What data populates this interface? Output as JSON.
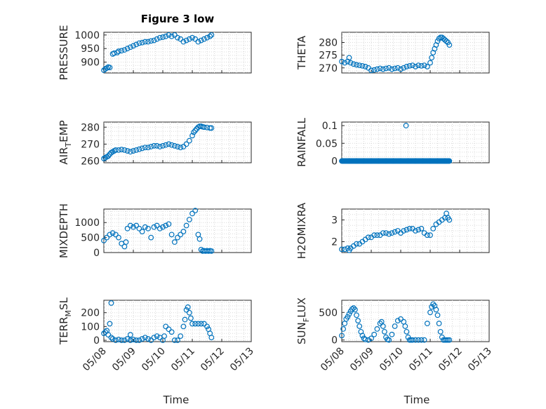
{
  "chart_data": [
    {
      "type": "scatter",
      "title": "Figure 3 low",
      "ylabel": {
        "main": "PRESSURE",
        "sub": "",
        "tail": ""
      },
      "ylim": [
        860,
        1010
      ],
      "yticks": [
        900,
        950,
        1000
      ],
      "xlim": [
        "05/08",
        "05/13"
      ],
      "xticks": [
        "05/08",
        "05/09",
        "05/10",
        "05/11",
        "05/12",
        "05/13"
      ],
      "grid": true,
      "series": [
        {
          "x": [
            0,
            0.05,
            0.1,
            0.15,
            0.2,
            0.3,
            0.35,
            0.45,
            0.5,
            0.6,
            0.7,
            0.8,
            0.9,
            1.0,
            1.1,
            1.2,
            1.3,
            1.4,
            1.5,
            1.6,
            1.7,
            1.8,
            1.9,
            2.0,
            2.1,
            2.2,
            2.3,
            2.4,
            2.5,
            2.6,
            2.7,
            2.8,
            2.9,
            3.0,
            3.1,
            3.2,
            3.3,
            3.4,
            3.5,
            3.6,
            3.65
          ],
          "y": [
            870,
            875,
            878,
            882,
            880,
            930,
            933,
            935,
            940,
            942,
            945,
            950,
            955,
            960,
            965,
            970,
            972,
            975,
            975,
            978,
            980,
            985,
            990,
            992,
            995,
            1000,
            995,
            1000,
            990,
            985,
            975,
            980,
            985,
            990,
            985,
            975,
            980,
            985,
            990,
            995,
            1000
          ]
        }
      ]
    },
    {
      "type": "scatter",
      "title": "",
      "ylabel": {
        "main": "THETA",
        "sub": "",
        "tail": ""
      },
      "ylim": [
        268,
        284
      ],
      "yticks": [
        270,
        275,
        280
      ],
      "xlim": [
        "05/08",
        "05/13"
      ],
      "xticks": [
        "05/08",
        "05/09",
        "05/10",
        "05/11",
        "05/12",
        "05/13"
      ],
      "grid": true,
      "series": [
        {
          "x": [
            0,
            0.1,
            0.2,
            0.25,
            0.3,
            0.4,
            0.5,
            0.6,
            0.7,
            0.8,
            0.9,
            1.0,
            1.1,
            1.2,
            1.3,
            1.4,
            1.5,
            1.6,
            1.7,
            1.8,
            1.9,
            2.0,
            2.1,
            2.2,
            2.3,
            2.4,
            2.5,
            2.6,
            2.7,
            2.8,
            2.9,
            3.0,
            3.05,
            3.1,
            3.15,
            3.2,
            3.25,
            3.3,
            3.35,
            3.4,
            3.45,
            3.5,
            3.55,
            3.6,
            3.65
          ],
          "y": [
            272.5,
            272,
            272.5,
            274,
            272,
            271.5,
            271.2,
            271,
            270.8,
            270.5,
            270,
            269,
            269.2,
            269.5,
            269.8,
            269.5,
            269.8,
            270,
            269.5,
            269.8,
            270,
            269.5,
            270,
            270.5,
            270.8,
            271,
            270.5,
            271,
            270.8,
            271,
            270.5,
            272,
            274,
            276,
            277.5,
            279,
            280.5,
            281.5,
            282,
            282,
            281.5,
            281,
            280.5,
            280,
            279
          ]
        }
      ]
    },
    {
      "type": "scatter",
      "title": "",
      "ylabel": {
        "main": "AIR",
        "sub": "T",
        "tail": "EMP"
      },
      "ylim": [
        259,
        283
      ],
      "yticks": [
        260,
        270,
        280
      ],
      "xlim": [
        "05/08",
        "05/13"
      ],
      "xticks": [
        "05/08",
        "05/09",
        "05/10",
        "05/11",
        "05/12",
        "05/13"
      ],
      "grid": true,
      "series": [
        {
          "x": [
            0,
            0.05,
            0.1,
            0.15,
            0.2,
            0.25,
            0.3,
            0.35,
            0.4,
            0.5,
            0.6,
            0.7,
            0.8,
            0.9,
            1.0,
            1.1,
            1.2,
            1.3,
            1.4,
            1.5,
            1.6,
            1.7,
            1.8,
            1.9,
            2.0,
            2.1,
            2.2,
            2.3,
            2.4,
            2.5,
            2.6,
            2.7,
            2.8,
            2.9,
            3.0,
            3.05,
            3.1,
            3.15,
            3.2,
            3.25,
            3.3,
            3.35,
            3.4,
            3.5,
            3.6,
            3.65
          ],
          "y": [
            261.5,
            262,
            262.5,
            263,
            264,
            265,
            265.5,
            266,
            266.5,
            266.5,
            266.8,
            266.5,
            266,
            265.5,
            266,
            266.5,
            267,
            267.5,
            268,
            268,
            268.5,
            269,
            269,
            268.5,
            269,
            269.5,
            270,
            269.5,
            269,
            268.5,
            268,
            268.5,
            270,
            272,
            275,
            277,
            278,
            279,
            280,
            280.5,
            280.5,
            280.2,
            280,
            279.8,
            279.5,
            279.5
          ]
        }
      ]
    },
    {
      "type": "scatter",
      "title": "",
      "ylabel": {
        "main": "RAINFALL",
        "sub": "",
        "tail": ""
      },
      "ylim": [
        -0.005,
        0.11
      ],
      "yticks": [
        0,
        0.05,
        0.1
      ],
      "ytick_labels": [
        "0",
        "0.05",
        "0.1"
      ],
      "xlim": [
        "05/08",
        "05/13"
      ],
      "xticks": [
        "05/08",
        "05/09",
        "05/10",
        "05/11",
        "05/12",
        "05/13"
      ],
      "grid": true,
      "series": [
        {
          "x": [
            0,
            0.25,
            0.5,
            0.75,
            1.0,
            1.25,
            1.5,
            1.75,
            2.0,
            2.25,
            2.5,
            2.75,
            3.0,
            3.25,
            3.5,
            3.65,
            2.18
          ],
          "y": [
            0,
            0,
            0,
            0,
            0,
            0,
            0,
            0,
            0,
            0,
            0,
            0,
            0,
            0,
            0,
            0,
            0.1
          ]
        }
      ]
    },
    {
      "type": "scatter",
      "title": "",
      "ylabel": {
        "main": "MIXDEPTH",
        "sub": "",
        "tail": ""
      },
      "ylim": [
        0,
        1450
      ],
      "yticks": [
        0,
        500,
        1000
      ],
      "xlim": [
        "05/08",
        "05/13"
      ],
      "xticks": [
        "05/08",
        "05/09",
        "05/10",
        "05/11",
        "05/12",
        "05/13"
      ],
      "grid": true,
      "series": [
        {
          "x": [
            0,
            0.1,
            0.2,
            0.3,
            0.4,
            0.5,
            0.6,
            0.7,
            0.75,
            0.8,
            0.9,
            1.0,
            1.1,
            1.2,
            1.3,
            1.4,
            1.5,
            1.6,
            1.7,
            1.8,
            1.9,
            2.0,
            2.1,
            2.2,
            2.3,
            2.4,
            2.5,
            2.6,
            2.7,
            2.8,
            2.9,
            3.0,
            3.1,
            3.2,
            3.25,
            3.3,
            3.35,
            3.4,
            3.45,
            3.5,
            3.55,
            3.6,
            3.65
          ],
          "y": [
            400,
            500,
            600,
            650,
            600,
            500,
            300,
            200,
            350,
            800,
            900,
            850,
            900,
            800,
            700,
            850,
            800,
            500,
            850,
            900,
            800,
            850,
            900,
            950,
            600,
            350,
            500,
            600,
            700,
            900,
            1100,
            1300,
            1400,
            600,
            450,
            100,
            50,
            60,
            50,
            60,
            50,
            60,
            50
          ]
        }
      ]
    },
    {
      "type": "scatter",
      "title": "",
      "ylabel": {
        "main": "H2OMIXRA",
        "sub": "",
        "tail": ""
      },
      "ylim": [
        1.5,
        3.5
      ],
      "yticks": [
        2,
        3
      ],
      "xlim": [
        "05/08",
        "05/13"
      ],
      "xticks": [
        "05/08",
        "05/09",
        "05/10",
        "05/11",
        "05/12",
        "05/13"
      ],
      "grid": true,
      "series": [
        {
          "x": [
            0,
            0.1,
            0.2,
            0.25,
            0.3,
            0.4,
            0.5,
            0.6,
            0.7,
            0.8,
            0.9,
            1.0,
            1.1,
            1.2,
            1.3,
            1.4,
            1.5,
            1.6,
            1.7,
            1.8,
            1.9,
            2.0,
            2.1,
            2.2,
            2.3,
            2.4,
            2.5,
            2.6,
            2.7,
            2.8,
            2.9,
            3.0,
            3.1,
            3.2,
            3.3,
            3.4,
            3.5,
            3.55,
            3.6,
            3.65
          ],
          "y": [
            1.65,
            1.65,
            1.7,
            1.6,
            1.7,
            1.8,
            1.9,
            1.9,
            2.0,
            2.1,
            2.2,
            2.2,
            2.3,
            2.3,
            2.3,
            2.4,
            2.4,
            2.35,
            2.4,
            2.45,
            2.5,
            2.4,
            2.5,
            2.55,
            2.6,
            2.6,
            2.5,
            2.55,
            2.6,
            2.4,
            2.3,
            2.3,
            2.6,
            2.8,
            2.9,
            3.0,
            3.1,
            3.3,
            3.1,
            3.0
          ]
        }
      ]
    },
    {
      "type": "scatter",
      "title": "",
      "ylabel": {
        "main": "TERR",
        "sub": "M",
        "tail": "SL"
      },
      "ylim": [
        -10,
        290
      ],
      "yticks": [
        0,
        100,
        200
      ],
      "xlim": [
        "05/08",
        "05/13"
      ],
      "xticks": [
        "05/08",
        "05/09",
        "05/10",
        "05/11",
        "05/12",
        "05/13"
      ],
      "grid": true,
      "series": [
        {
          "x": [
            0,
            0.05,
            0.1,
            0.15,
            0.2,
            0.25,
            0.3,
            0.4,
            0.5,
            0.6,
            0.7,
            0.8,
            0.9,
            1.0,
            1.1,
            1.2,
            1.3,
            1.4,
            1.5,
            1.6,
            1.7,
            1.8,
            1.9,
            2.0,
            2.05,
            2.1,
            2.2,
            2.3,
            2.4,
            2.5,
            2.6,
            2.7,
            2.75,
            2.8,
            2.85,
            2.9,
            2.95,
            3.0,
            3.1,
            3.2,
            3.3,
            3.4,
            3.5,
            3.55,
            3.6,
            3.65,
            0.25,
            0.9
          ],
          "y": [
            50,
            60,
            70,
            40,
            120,
            20,
            10,
            0,
            5,
            0,
            0,
            10,
            0,
            5,
            0,
            0,
            10,
            20,
            10,
            0,
            20,
            30,
            20,
            0,
            30,
            100,
            80,
            60,
            0,
            0,
            30,
            100,
            150,
            220,
            240,
            200,
            160,
            120,
            120,
            120,
            120,
            120,
            100,
            80,
            50,
            20,
            270,
            40
          ]
        }
      ]
    },
    {
      "type": "scatter",
      "title": "",
      "ylabel": {
        "main": "SUN",
        "sub": "F",
        "tail": "LUX"
      },
      "ylim": [
        -30,
        720
      ],
      "yticks": [
        0,
        500
      ],
      "xlim": [
        "05/08",
        "05/13"
      ],
      "xticks": [
        "05/08",
        "05/09",
        "05/10",
        "05/11",
        "05/12",
        "05/13"
      ],
      "grid": true,
      "series": [
        {
          "x": [
            0,
            0.05,
            0.1,
            0.15,
            0.2,
            0.25,
            0.3,
            0.35,
            0.4,
            0.45,
            0.5,
            0.55,
            0.6,
            0.65,
            0.7,
            0.75,
            0.8,
            0.9,
            1.0,
            1.1,
            1.2,
            1.3,
            1.35,
            1.4,
            1.45,
            1.5,
            1.55,
            1.6,
            1.7,
            1.8,
            1.9,
            2.0,
            2.1,
            2.15,
            2.2,
            2.25,
            2.3,
            2.35,
            2.4,
            2.5,
            2.6,
            2.7,
            2.8,
            2.9,
            3.0,
            3.05,
            3.1,
            3.15,
            3.2,
            3.25,
            3.3,
            3.35,
            3.4,
            3.45,
            3.5,
            3.55,
            3.6,
            3.65
          ],
          "y": [
            80,
            200,
            300,
            380,
            420,
            470,
            520,
            560,
            580,
            550,
            450,
            350,
            250,
            150,
            80,
            30,
            10,
            0,
            30,
            100,
            200,
            300,
            330,
            250,
            150,
            50,
            10,
            0,
            100,
            250,
            350,
            380,
            330,
            250,
            150,
            50,
            0,
            0,
            0,
            0,
            0,
            0,
            0,
            300,
            500,
            600,
            650,
            620,
            550,
            450,
            300,
            150,
            50,
            0,
            0,
            0,
            0,
            0
          ]
        }
      ]
    }
  ],
  "xlabel": "Time",
  "colors": {
    "marker": "#0072bd",
    "axis": "#262626",
    "grid": "#d9d9d9"
  }
}
